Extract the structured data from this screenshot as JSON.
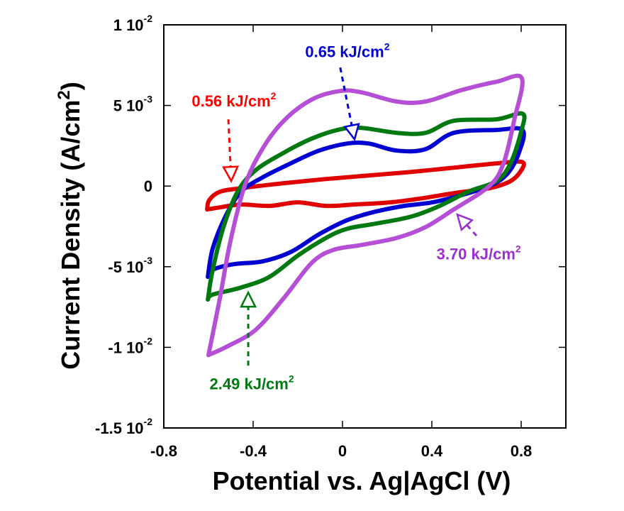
{
  "chart_data": {
    "type": "line",
    "title": "",
    "xlabel": "Potential vs. Ag|AgCl (V)",
    "ylabel": "Current Density (A/cm",
    "ylabel_sup": "2",
    "ylabel_close": ")",
    "xlim": [
      -0.8,
      1.0
    ],
    "ylim": [
      -0.015,
      0.01
    ],
    "grid": false,
    "legend": "none",
    "x_ticks": [
      {
        "value": -0.8,
        "label": "-0.8"
      },
      {
        "value": -0.4,
        "label": "-0.4"
      },
      {
        "value": 0,
        "label": "0"
      },
      {
        "value": 0.4,
        "label": "0.4"
      },
      {
        "value": 0.8,
        "label": "0.8"
      }
    ],
    "y_ticks": [
      {
        "value": 0.01,
        "mant": "1 10",
        "exp": "-2"
      },
      {
        "value": 0.005,
        "mant": "5 10",
        "exp": "-3"
      },
      {
        "value": 0,
        "mant": "0",
        "exp": ""
      },
      {
        "value": -0.005,
        "mant": "-5 10",
        "exp": "-3"
      },
      {
        "value": -0.01,
        "mant": "-1 10",
        "exp": "-2"
      },
      {
        "value": -0.015,
        "mant": "-1.5 10",
        "exp": "-2"
      }
    ],
    "series": [
      {
        "name": "0.56 kJ/cm2",
        "color": "#e00000",
        "x": [
          -0.606,
          -0.597,
          -0.549,
          -0.454,
          -0.263,
          -0.073,
          0.117,
          0.308,
          0.498,
          0.689,
          0.803,
          0.8,
          0.752,
          0.657,
          0.498,
          0.34,
          0.213,
          0.054,
          -0.073,
          -0.2,
          -0.327,
          -0.454,
          -0.549,
          -0.606
        ],
        "y": [
          -0.00145,
          -0.00088,
          -0.00035,
          -0.00013,
          0.00018,
          0.00044,
          0.00066,
          0.00088,
          0.00114,
          0.00141,
          0.0015,
          0.00097,
          0.00031,
          -0.00013,
          -0.00044,
          -0.00079,
          -0.00101,
          -0.00114,
          -0.00123,
          -0.00101,
          -0.00123,
          -0.00114,
          -0.00132,
          -0.00145
        ]
      },
      {
        "name": "0.65 kJ/cm2",
        "color": "#0000d0",
        "x": [
          -0.603,
          -0.581,
          -0.524,
          -0.454,
          -0.359,
          -0.232,
          -0.105,
          0.022,
          0.117,
          0.244,
          0.371,
          0.498,
          0.689,
          0.806,
          0.79,
          0.737,
          0.657,
          0.53,
          0.403,
          0.276,
          0.149,
          0.022,
          -0.105,
          -0.232,
          -0.359,
          -0.486,
          -0.581,
          -0.603
        ],
        "y": [
          -0.00563,
          -0.00387,
          -0.00189,
          -0.00035,
          0.00053,
          0.00141,
          0.0022,
          0.00264,
          0.00264,
          0.0022,
          0.00229,
          0.0033,
          0.00348,
          0.00348,
          0.00207,
          0.00075,
          0,
          -0.00057,
          -0.00101,
          -0.00123,
          -0.00158,
          -0.00211,
          -0.00299,
          -0.00409,
          -0.00467,
          -0.00484,
          -0.00519,
          -0.00563
        ]
      },
      {
        "name": "2.49 kJ/cm2",
        "color": "#007a10",
        "x": [
          -0.603,
          -0.581,
          -0.533,
          -0.47,
          -0.39,
          -0.263,
          -0.137,
          -0.01,
          0.086,
          0.244,
          0.371,
          0.498,
          0.689,
          0.806,
          0.8,
          0.752,
          0.689,
          0.562,
          0.435,
          0.308,
          0.149,
          0.022,
          -0.073,
          -0.2,
          -0.327,
          -0.454,
          -0.581,
          -0.603
        ],
        "y": [
          -0.00704,
          -0.00519,
          -0.00255,
          -0.00035,
          0.00097,
          0.00207,
          0.00295,
          0.00352,
          0.00361,
          0.0033,
          0.0033,
          0.00405,
          0.00414,
          0.00449,
          0.00339,
          0.00141,
          0.00031,
          -0.00035,
          -0.00123,
          -0.00189,
          -0.00233,
          -0.00264,
          -0.00321,
          -0.00431,
          -0.00563,
          -0.00629,
          -0.00673,
          -0.00704
        ]
      },
      {
        "name": "3.70 kJ/cm2",
        "color": "#b44fd6",
        "x": [
          -0.6,
          -0.549,
          -0.502,
          -0.438,
          -0.359,
          -0.263,
          -0.137,
          -0.01,
          0.086,
          0.244,
          0.371,
          0.53,
          0.689,
          0.803,
          0.768,
          0.721,
          0.657,
          0.498,
          0.371,
          0.244,
          0.086,
          -0.041,
          -0.137,
          -0.263,
          -0.39,
          -0.517,
          -0.6
        ],
        "y": [
          -0.01048,
          -0.00695,
          -0.00343,
          0,
          0.00229,
          0.00405,
          0.00537,
          0.0059,
          0.00581,
          0.00524,
          0.00524,
          0.00594,
          0.00647,
          0.00669,
          0.00405,
          0.00141,
          0,
          -0.00145,
          -0.00255,
          -0.00321,
          -0.00365,
          -0.00396,
          -0.00475,
          -0.00695,
          -0.00893,
          -0.00995,
          -0.01048
        ]
      }
    ],
    "annotations": [
      {
        "text": "0.56 kJ/cm",
        "sup": "2",
        "color": "#ff0000",
        "label_at": [
          -0.486,
          0.00528
        ],
        "arrow_from": [
          -0.511,
          0.00414
        ],
        "arrow_to": [
          -0.498,
          0.00031
        ]
      },
      {
        "text": "0.65 kJ/cm",
        "sup": "2",
        "color": "#0000d0",
        "label_at": [
          0.022,
          0.00836
        ],
        "arrow_from": [
          -0.01,
          0.00735
        ],
        "arrow_to": [
          0.054,
          0.0029
        ]
      },
      {
        "text": "3.70 kJ/cm",
        "sup": "2",
        "color": "#9a30d0",
        "label_at": [
          0.61,
          -0.0042
        ],
        "arrow_from": [
          0.6,
          -0.00308
        ],
        "arrow_to": [
          0.514,
          -0.00176
        ]
      },
      {
        "text": "2.49 kJ/cm",
        "sup": "2",
        "color": "#007a10",
        "label_at": [
          -0.406,
          -0.01224
        ],
        "arrow_from": [
          -0.422,
          -0.01113
        ],
        "arrow_to": [
          -0.422,
          -0.0066
        ]
      }
    ]
  }
}
